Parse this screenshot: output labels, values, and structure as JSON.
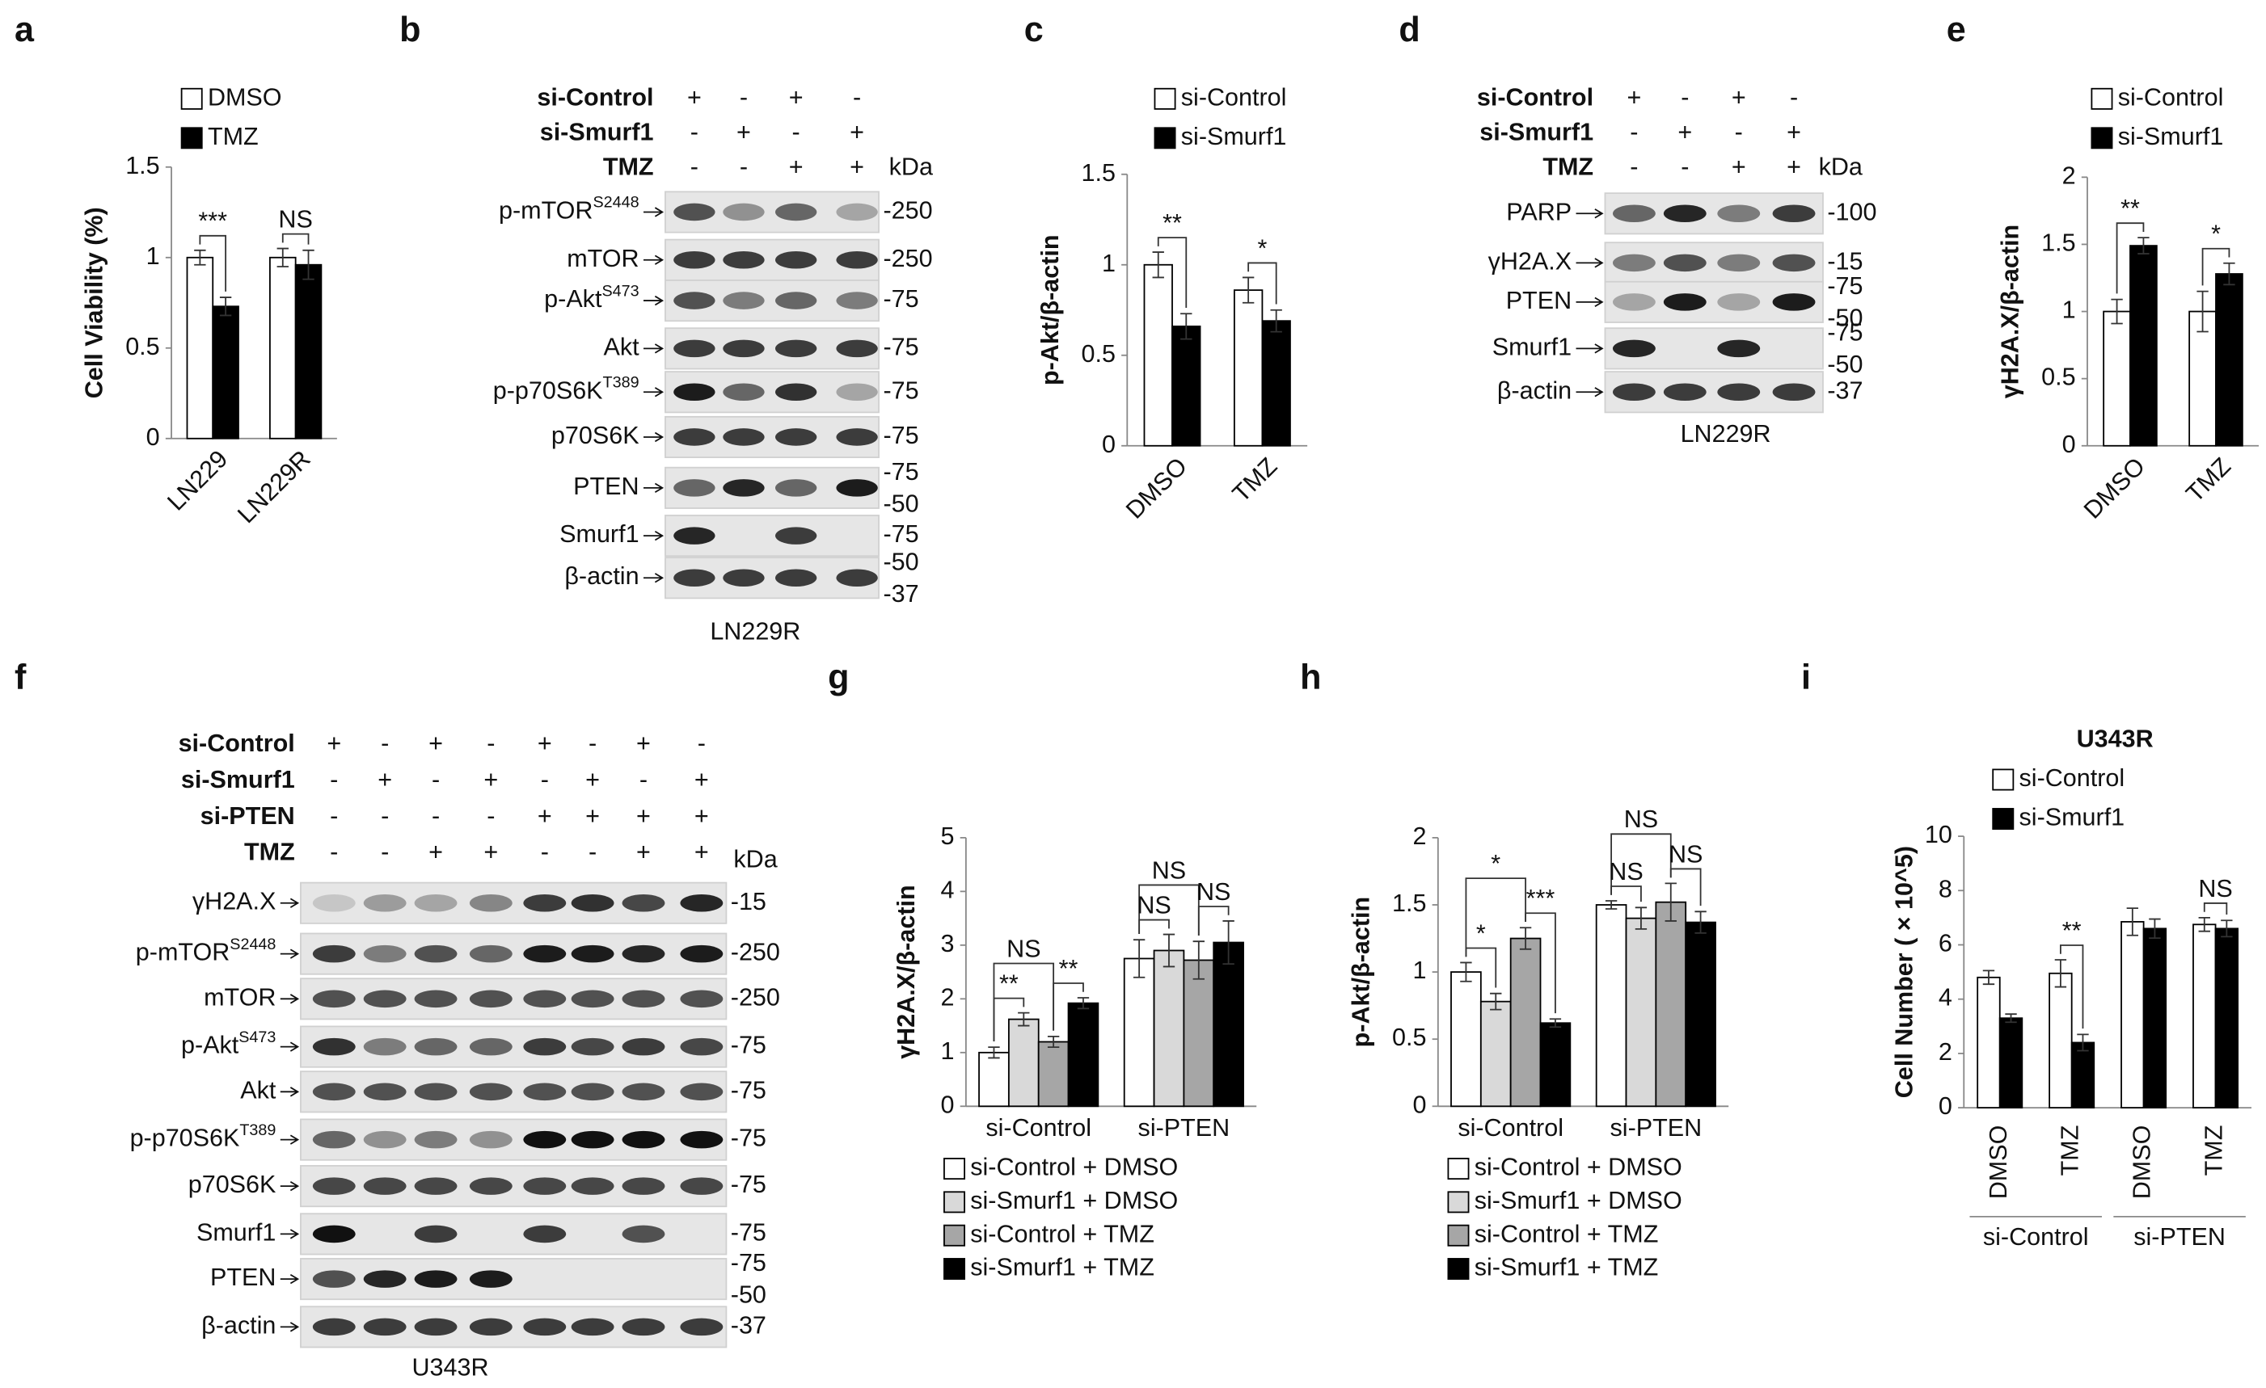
{
  "chart_data": [
    {
      "type": "bar",
      "panel": "a",
      "ylabel": "Cell Viability (%)",
      "categories": [
        "LN229",
        "LN229R"
      ],
      "series": [
        {
          "name": "DMSO",
          "color": "#ffffff",
          "values": [
            1,
            1
          ],
          "errors": [
            0.04,
            0.05
          ]
        },
        {
          "name": "TMZ",
          "color": "#000000",
          "values": [
            0.73,
            0.96
          ],
          "errors": [
            0.05,
            0.08
          ]
        }
      ],
      "ylim": [
        0,
        1.5
      ],
      "yticks": [
        0,
        0.5,
        1,
        1.5
      ],
      "legend": "top",
      "annotations": [
        "***",
        "NS"
      ]
    },
    {
      "type": "bar",
      "panel": "c",
      "ylabel": "p-Akt/β-actin",
      "categories": [
        "DMSO",
        "TMZ"
      ],
      "series": [
        {
          "name": "si-Control",
          "color": "#ffffff",
          "values": [
            1,
            0.86
          ],
          "errors": [
            0.07,
            0.07
          ]
        },
        {
          "name": "si-Smurf1",
          "color": "#000000",
          "values": [
            0.66,
            0.69
          ],
          "errors": [
            0.07,
            0.06
          ]
        }
      ],
      "ylim": [
        0,
        1.5
      ],
      "yticks": [
        0,
        0.5,
        1,
        1.5
      ],
      "legend": "top",
      "annotations": [
        "**",
        "*"
      ]
    },
    {
      "type": "bar",
      "panel": "e",
      "ylabel": "γH2A.X/β-actin",
      "categories": [
        "DMSO",
        "TMZ"
      ],
      "series": [
        {
          "name": "si-Control",
          "color": "#ffffff",
          "values": [
            1,
            1
          ],
          "errors": [
            0.09,
            0.15
          ]
        },
        {
          "name": "si-Smurf1",
          "color": "#000000",
          "values": [
            1.49,
            1.28
          ],
          "errors": [
            0.06,
            0.08
          ]
        }
      ],
      "ylim": [
        0,
        2
      ],
      "yticks": [
        0,
        0.5,
        1,
        1.5,
        2
      ],
      "legend": "top",
      "annotations": [
        "**",
        "*"
      ]
    },
    {
      "type": "bar",
      "panel": "g",
      "ylabel": "γH2A.X/β-actin",
      "categories": [
        "si-Control",
        "si-PTEN"
      ],
      "series": [
        {
          "name": "si-Control + DMSO",
          "color": "#ffffff",
          "values": [
            1,
            2.75
          ],
          "errors": [
            0.1,
            0.35
          ]
        },
        {
          "name": "si-Smurf1 + DMSO",
          "color": "#d9d9d9",
          "values": [
            1.62,
            2.9
          ],
          "errors": [
            0.12,
            0.3
          ]
        },
        {
          "name": "si-Control + TMZ",
          "color": "#a6a6a6",
          "values": [
            1.2,
            2.72
          ],
          "errors": [
            0.1,
            0.35
          ]
        },
        {
          "name": "si-Smurf1 + TMZ",
          "color": "#000000",
          "values": [
            1.92,
            3.05
          ],
          "errors": [
            0.1,
            0.4
          ]
        }
      ],
      "ylim": [
        0,
        5
      ],
      "yticks": [
        0,
        1,
        2,
        3,
        4,
        5
      ],
      "legend": "bottom",
      "annotations": [
        "NS",
        "**",
        "**",
        "NS",
        "NS",
        "NS"
      ]
    },
    {
      "type": "bar",
      "panel": "h",
      "ylabel": "p-Akt/β-actin",
      "categories": [
        "si-Control",
        "si-PTEN"
      ],
      "series": [
        {
          "name": "si-Control + DMSO",
          "color": "#ffffff",
          "values": [
            1,
            1.5
          ],
          "errors": [
            0.07,
            0.03
          ]
        },
        {
          "name": "si-Smurf1 + DMSO",
          "color": "#d9d9d9",
          "values": [
            0.78,
            1.4
          ],
          "errors": [
            0.06,
            0.08
          ]
        },
        {
          "name": "si-Control + TMZ",
          "color": "#a6a6a6",
          "values": [
            1.25,
            1.52
          ],
          "errors": [
            0.08,
            0.14
          ]
        },
        {
          "name": "si-Smurf1 + TMZ",
          "color": "#000000",
          "values": [
            0.62,
            1.37
          ],
          "errors": [
            0.03,
            0.08
          ]
        }
      ],
      "ylim": [
        0,
        2
      ],
      "yticks": [
        0,
        0.5,
        1,
        1.5,
        2
      ],
      "legend": "bottom",
      "annotations": [
        "*",
        "*",
        "***",
        "NS",
        "NS",
        "NS"
      ]
    },
    {
      "type": "bar",
      "panel": "i",
      "title": "U343R",
      "ylabel": "Cell Number ( × 10^5)",
      "categories": [
        "DMSO",
        "TMZ",
        "DMSO",
        "TMZ"
      ],
      "group_labels": [
        "si-Control",
        "si-PTEN"
      ],
      "series": [
        {
          "name": "si-Control",
          "color": "#ffffff",
          "values": [
            4.8,
            4.95,
            6.85,
            6.75
          ],
          "errors": [
            0.25,
            0.5,
            0.5,
            0.25
          ]
        },
        {
          "name": "si-Smurf1",
          "color": "#000000",
          "values": [
            3.3,
            2.4,
            6.6,
            6.6
          ],
          "errors": [
            0.15,
            0.3,
            0.35,
            0.3
          ]
        }
      ],
      "ylim": [
        0,
        10
      ],
      "yticks": [
        0,
        2,
        4,
        6,
        8,
        10
      ],
      "legend": "top",
      "annotations": [
        "**",
        "NS"
      ]
    }
  ],
  "blots": [
    {
      "panel": "b",
      "unit": "kDa",
      "cell_line": "LN229R",
      "conditions": [
        {
          "label": "si-Control",
          "signs": [
            "+",
            "-",
            "+",
            "-"
          ]
        },
        {
          "label": "si-Smurf1",
          "signs": [
            "-",
            "+",
            "-",
            "+"
          ]
        },
        {
          "label": "TMZ",
          "signs": [
            "-",
            "-",
            "+",
            "+"
          ]
        }
      ],
      "rows": [
        {
          "name": "p-mTOR",
          "sup": "S2448",
          "markers": [
            "-250"
          ]
        },
        {
          "name": "mTOR",
          "markers": [
            "-250"
          ]
        },
        {
          "name": "p-Akt",
          "sup": "S473",
          "markers": [
            "-75"
          ]
        },
        {
          "name": "Akt",
          "markers": [
            "-75"
          ]
        },
        {
          "name": "p-p70S6K",
          "sup": "T389",
          "markers": [
            "-75"
          ]
        },
        {
          "name": "p70S6K",
          "markers": [
            "-75"
          ]
        },
        {
          "name": "PTEN",
          "markers": [
            "-75",
            "-50"
          ]
        },
        {
          "name": "Smurf1",
          "markers": [
            "-75"
          ]
        },
        {
          "name": "β-actin",
          "markers": [
            "-50",
            "-37"
          ]
        }
      ]
    },
    {
      "panel": "d",
      "unit": "kDa",
      "cell_line": "LN229R",
      "conditions": [
        {
          "label": "si-Control",
          "signs": [
            "+",
            "-",
            "+",
            "-"
          ]
        },
        {
          "label": "si-Smurf1",
          "signs": [
            "-",
            "+",
            "-",
            "+"
          ]
        },
        {
          "label": "TMZ",
          "signs": [
            "-",
            "-",
            "+",
            "+"
          ]
        }
      ],
      "rows": [
        {
          "name": "PARP",
          "markers": [
            "-100"
          ]
        },
        {
          "name": "γH2A.X",
          "markers": [
            "-15"
          ]
        },
        {
          "name": "PTEN",
          "markers": [
            "-75",
            "-50"
          ]
        },
        {
          "name": "Smurf1",
          "markers": [
            "-75",
            "-50"
          ]
        },
        {
          "name": "β-actin",
          "markers": [
            "-37"
          ]
        }
      ]
    },
    {
      "panel": "f",
      "unit": "kDa",
      "cell_line": "U343R",
      "conditions": [
        {
          "label": "si-Control",
          "signs": [
            "+",
            "-",
            "+",
            "-",
            "+",
            "-",
            "+",
            "-"
          ]
        },
        {
          "label": "si-Smurf1",
          "signs": [
            "-",
            "+",
            "-",
            "+",
            "-",
            "+",
            "-",
            "+"
          ]
        },
        {
          "label": "si-PTEN",
          "signs": [
            "-",
            "-",
            "-",
            "-",
            "+",
            "+",
            "+",
            "+"
          ]
        },
        {
          "label": "TMZ",
          "signs": [
            "-",
            "-",
            "+",
            "+",
            "-",
            "-",
            "+",
            "+"
          ]
        }
      ],
      "rows": [
        {
          "name": "γH2A.X",
          "markers": [
            "-15"
          ]
        },
        {
          "name": "p-mTOR",
          "sup": "S2448",
          "markers": [
            "-250"
          ]
        },
        {
          "name": "mTOR",
          "markers": [
            "-250"
          ]
        },
        {
          "name": "p-Akt",
          "sup": "S473",
          "markers": [
            "-75"
          ]
        },
        {
          "name": "Akt",
          "markers": [
            "-75"
          ]
        },
        {
          "name": "p-p70S6K",
          "sup": "T389",
          "markers": [
            "-75"
          ]
        },
        {
          "name": "p70S6K",
          "markers": [
            "-75"
          ]
        },
        {
          "name": "Smurf1",
          "markers": [
            "-75"
          ]
        },
        {
          "name": "PTEN",
          "markers": [
            "-75",
            "-50"
          ]
        },
        {
          "name": "β-actin",
          "markers": [
            "-37"
          ]
        }
      ]
    }
  ]
}
